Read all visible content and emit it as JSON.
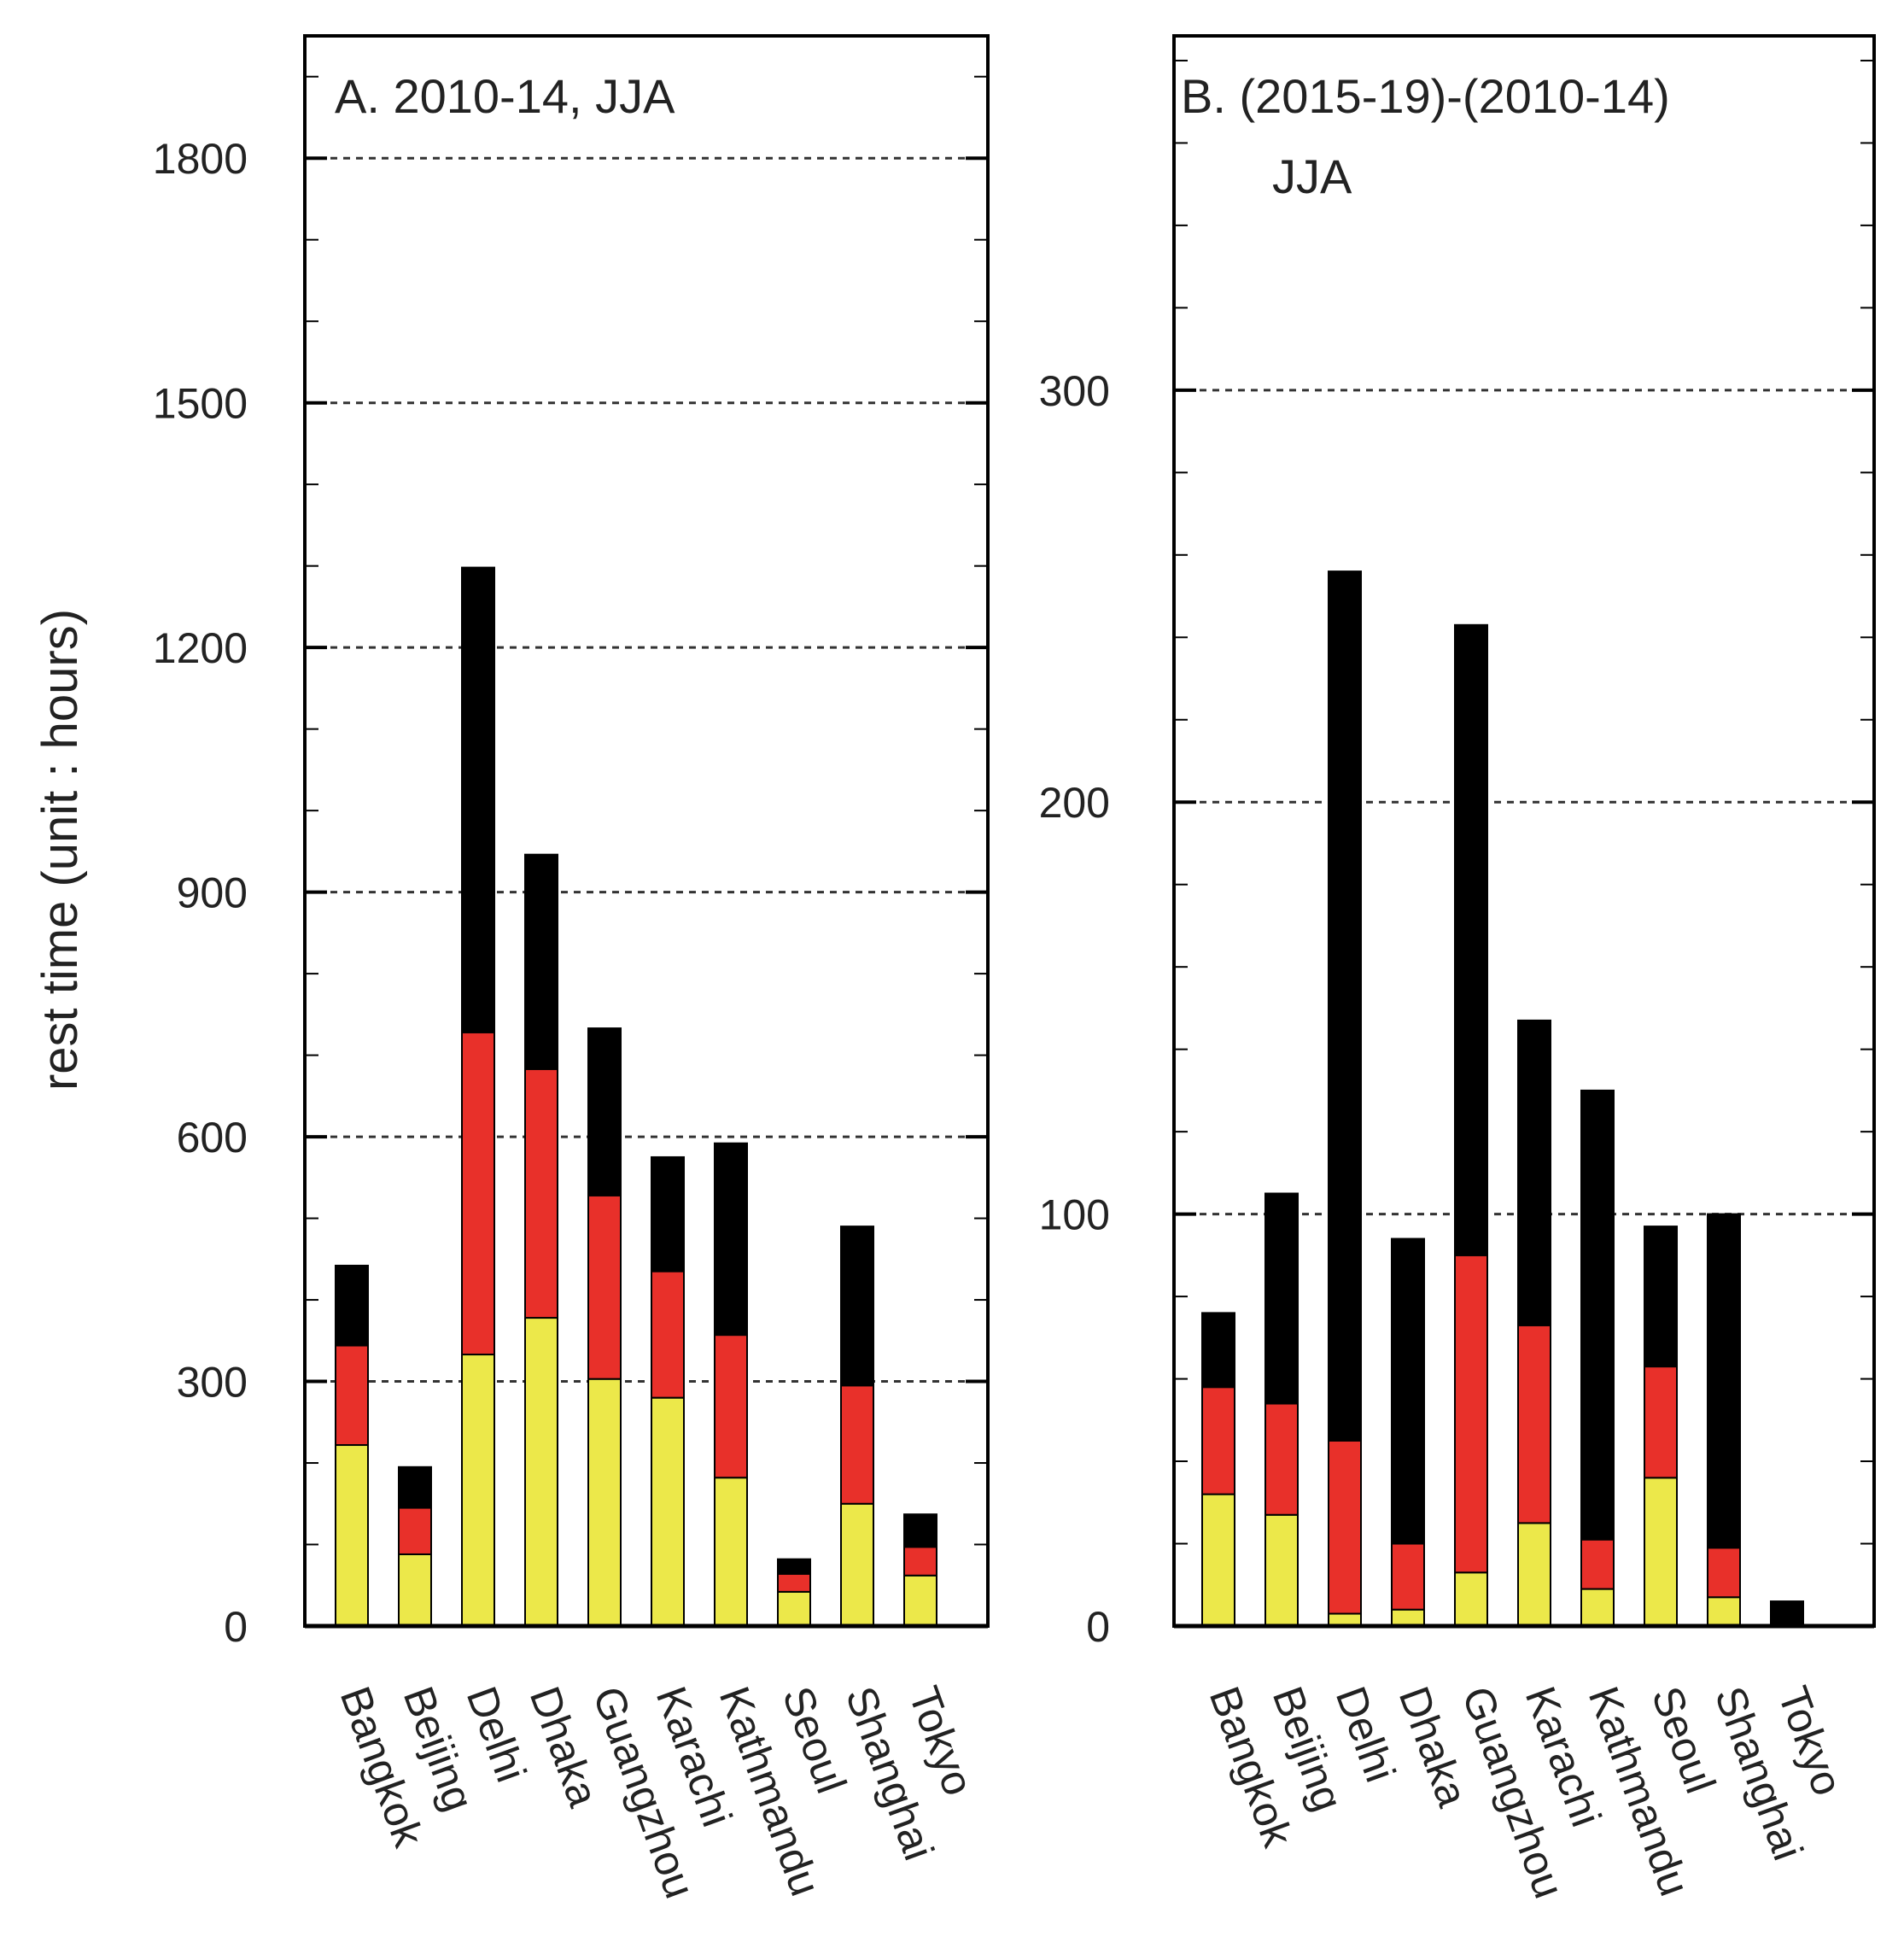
{
  "figure": {
    "ylabel": "rest time (unit : hours)",
    "colors": {
      "yellow": "#ece84a",
      "red": "#e8302a",
      "black": "#000000",
      "frame": "#000000",
      "grid": "#333333"
    }
  },
  "chart_data": [
    {
      "type": "bar",
      "stacked": true,
      "title": "A. 2010-14, JJA",
      "ylabel": "rest time (unit : hours)",
      "ylim": [
        0,
        1950
      ],
      "yticks": [
        0,
        300,
        600,
        900,
        1200,
        1500,
        1800
      ],
      "ytick_labels": [
        "0",
        "300",
        "600",
        "900",
        "1200",
        "1500",
        "1800"
      ],
      "grid": "dashed horizontal at labeled ticks",
      "categories": [
        "Bangkok",
        "Beijing",
        "Delhi",
        "Dhaka",
        "Guangzhou",
        "Karachi",
        "Kathmandu",
        "Seoul",
        "Shanghai",
        "Tokyo"
      ],
      "series": [
        {
          "name": "yellow",
          "color": "#ece84a",
          "values": [
            222,
            88,
            333,
            378,
            303,
            280,
            182,
            42,
            150,
            62
          ]
        },
        {
          "name": "red",
          "color": "#e8302a",
          "values": [
            122,
            57,
            395,
            305,
            225,
            155,
            175,
            22,
            145,
            35
          ]
        },
        {
          "name": "black",
          "color": "#000000",
          "values": [
            98,
            50,
            570,
            263,
            205,
            140,
            235,
            18,
            195,
            40
          ]
        }
      ]
    },
    {
      "type": "bar",
      "stacked": true,
      "title": "B. (2015-19)-(2010-14)",
      "subtitle": "JJA",
      "ylim": [
        0,
        386
      ],
      "yticks": [
        0,
        100,
        200,
        300
      ],
      "ytick_labels": [
        "0",
        "100",
        "200",
        "300"
      ],
      "grid": "dashed horizontal at labeled ticks",
      "categories": [
        "Bangkok",
        "Beijing",
        "Delhi",
        "Dhaka",
        "Guangzhou",
        "Karachi",
        "Kathmandu",
        "Seoul",
        "Shanghai",
        "Tokyo"
      ],
      "series": [
        {
          "name": "yellow",
          "color": "#ece84a",
          "values": [
            32,
            27,
            3,
            4,
            13,
            25,
            9,
            36,
            7,
            0
          ]
        },
        {
          "name": "red",
          "color": "#e8302a",
          "values": [
            26,
            27,
            42,
            16,
            77,
            48,
            12,
            27,
            12,
            0
          ]
        },
        {
          "name": "black",
          "color": "#000000",
          "values": [
            18,
            51,
            211,
            74,
            153,
            74,
            109,
            34,
            81,
            6
          ]
        }
      ]
    }
  ]
}
